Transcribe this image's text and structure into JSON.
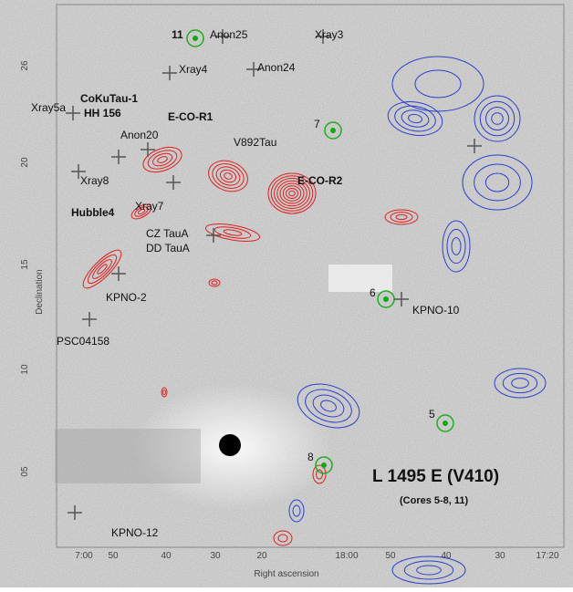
{
  "header": {
    "title": "L 1495 E (V410)",
    "subtitle": "(Cores 5-8, 11)"
  },
  "cores": [
    "11",
    "7",
    "6",
    "5",
    "8"
  ],
  "sources": [
    "Anon25",
    "Xray3",
    "Xray4",
    "Anon24",
    "Xray5a",
    "CoKuTau-1",
    "HH 156",
    "E-CO-R1",
    "Anon20",
    "V892Tau",
    "Xray8",
    "E-CO-R2",
    "Hubble4",
    "Xray7",
    "CZ TauA",
    "DD TauA",
    "KPNO-2",
    "KPNO-10",
    "PSC04158",
    "KPNO-12"
  ],
  "x_axis": {
    "title": "Right ascension",
    "ticks": [
      "7:00",
      "50",
      "40",
      "30",
      "20",
      "18:00",
      "50",
      "40",
      "30",
      "17:20"
    ]
  },
  "y_axis": {
    "title": "Declination",
    "ticks": [
      "26",
      "20",
      "15",
      "10",
      "05"
    ]
  }
}
